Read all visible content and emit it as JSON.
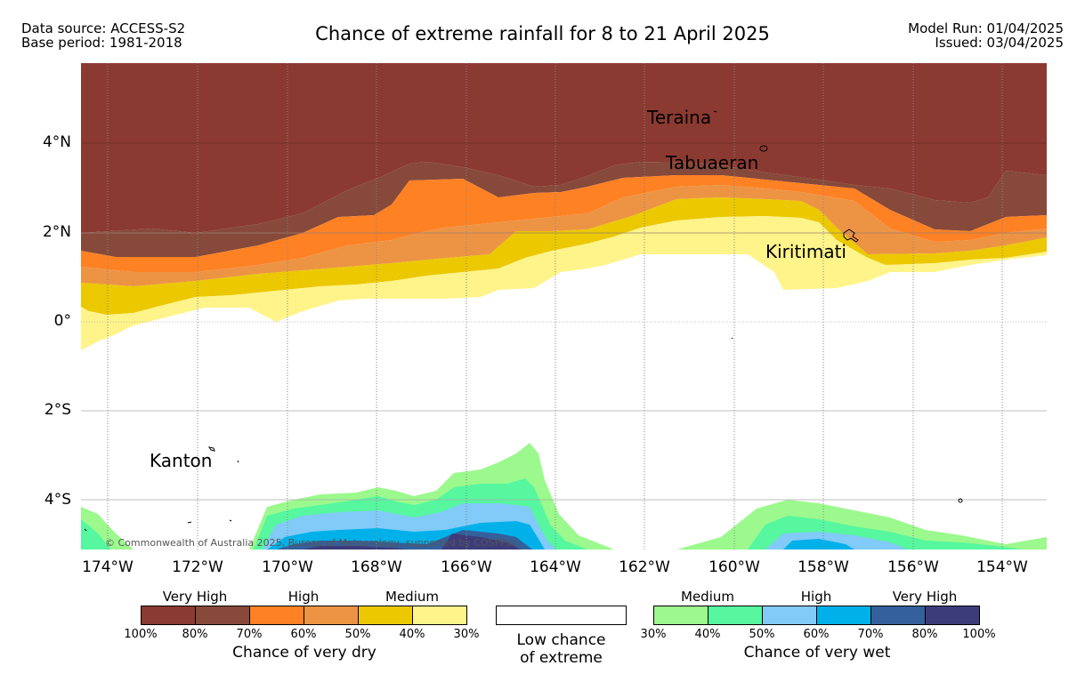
{
  "header": {
    "left_line1": "Data source: ACCESS-S2",
    "left_line2": "Base period: 1981-2018",
    "title": "Chance of extreme rainfall for 8 to 21 April 2025",
    "right_line1": "Model Run: 01/04/2025",
    "right_line2": "Issued: 03/04/2025"
  },
  "axes": {
    "lat_labels": [
      "4°N",
      "2°N",
      "0°",
      "2°S",
      "4°S"
    ],
    "lon_labels": [
      "174°W",
      "172°W",
      "170°W",
      "168°W",
      "166°W",
      "164°W",
      "162°W",
      "160°W",
      "158°W",
      "156°W",
      "154°W"
    ]
  },
  "places": [
    "Teraina",
    "Tabuaeran",
    "Kiritimati",
    "Kanton"
  ],
  "copyright": "© Commonwealth of Australia 2025, Bureau of Meteorology, supported by COSPPac",
  "legend": {
    "dry": {
      "categories": [
        "Very High",
        "High",
        "Medium"
      ],
      "ticks": [
        "100%",
        "80%",
        "70%",
        "60%",
        "50%",
        "40%",
        "30%"
      ],
      "colors": [
        "#8b3a31",
        "#86493a",
        "#fe8124",
        "#ec9444",
        "#ecc800",
        "#fff48a"
      ],
      "title": "Chance of very dry"
    },
    "neutral": {
      "line1": "Low chance",
      "line2": "of extreme",
      "color": "#ffffff"
    },
    "wet": {
      "categories": [
        "Medium",
        "High",
        "Very High"
      ],
      "ticks": [
        "30%",
        "40%",
        "50%",
        "60%",
        "70%",
        "80%",
        "100%"
      ],
      "colors": [
        "#9cf98d",
        "#56f79f",
        "#82caf7",
        "#00b1e9",
        "#34609b",
        "#3d3c7b"
      ],
      "title": "Chance of very wet"
    }
  }
}
